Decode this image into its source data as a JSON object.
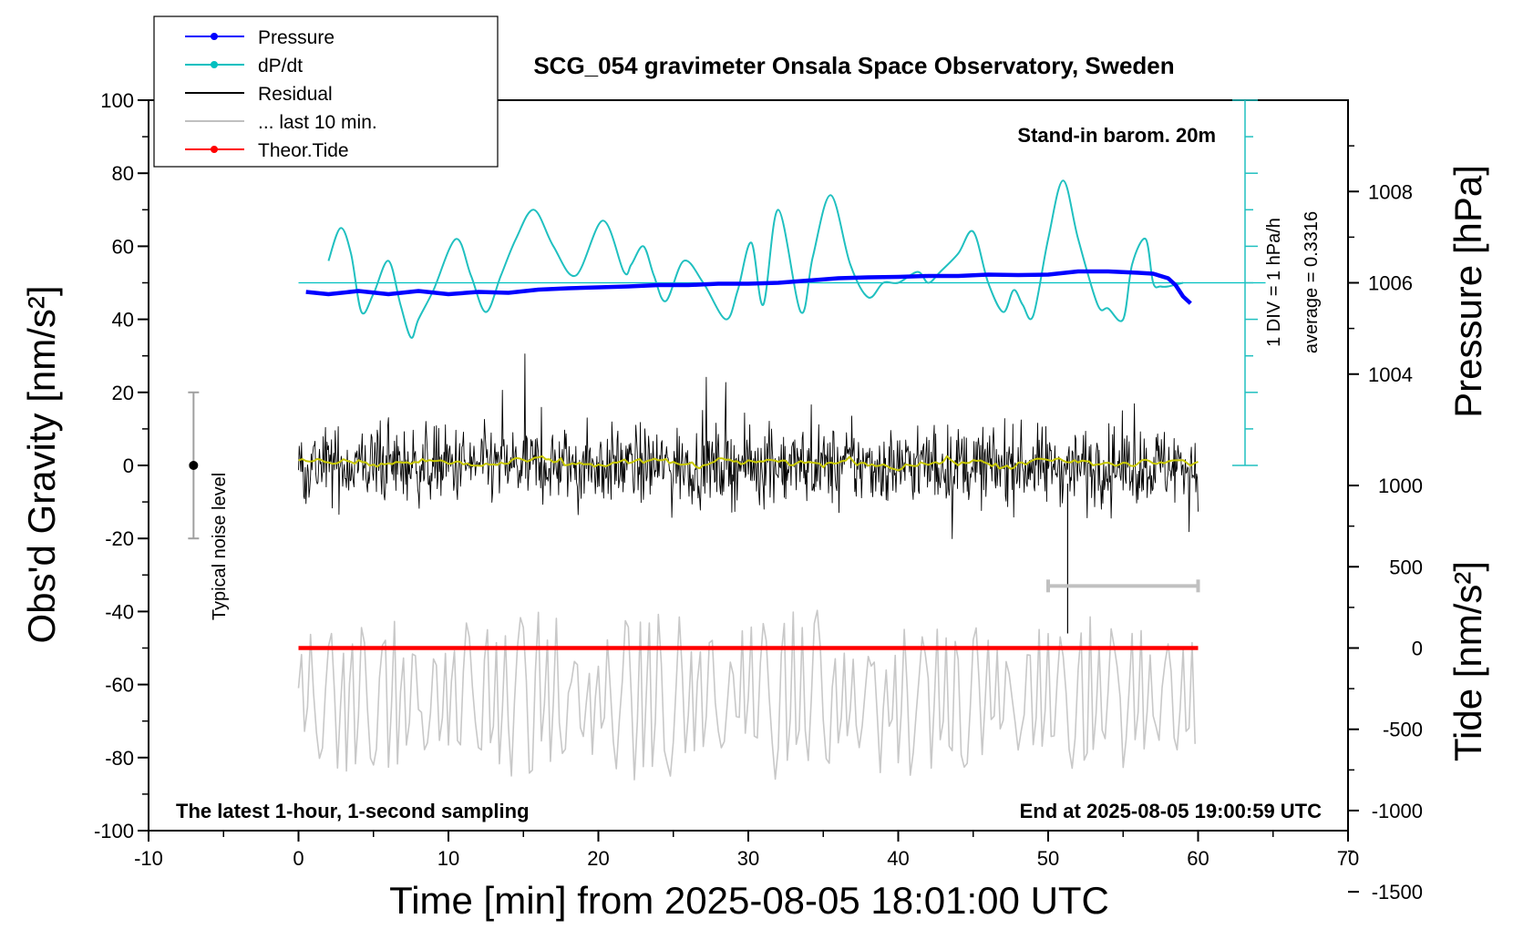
{
  "chart_data": {
    "type": "line",
    "title": "SCG_054 gravimeter Onsala Space Observatory, Sweden",
    "xlabel": "Time [min] from 2025-08-05 18:01:00 UTC",
    "ylabel_left": "Obs'd Gravity [nm/s²]",
    "ylabel_right_top": "Pressure [hPa]",
    "ylabel_right_bottom": "Tide [nm/s²]",
    "xlim": [
      -10,
      70
    ],
    "ylim": [
      -100,
      100
    ],
    "xticks": [
      "-10",
      "0",
      "10",
      "20",
      "30",
      "40",
      "50",
      "60",
      "70"
    ],
    "yticks": [
      "-100",
      "-80",
      "-60",
      "-40",
      "-20",
      "0",
      "20",
      "40",
      "60",
      "80",
      "100"
    ],
    "pressure_ticks": [
      "1004",
      "1006",
      "1008"
    ],
    "tide_ticks": [
      "-1500",
      "-1000",
      "-500",
      "0",
      "500",
      "1000"
    ],
    "annotations": {
      "barometer": "Stand-in barom. 20m",
      "latest": "The latest 1-hour, 1-second sampling",
      "end": "End at 2025-08-05 19:00:59 UTC",
      "noise": "Typical noise level",
      "scale": "1 DIV = 1 hPa/h",
      "average": "average = 0.3316"
    },
    "legend": [
      {
        "label": "Pressure",
        "color": "#0000ff",
        "marker": true
      },
      {
        "label": "dP/dt",
        "color": "#00c0c0",
        "marker": true
      },
      {
        "label": "Residual",
        "color": "#000000",
        "marker": false
      },
      {
        "label": "... last 10 min.",
        "color": "#c0c0c0",
        "marker": false
      },
      {
        "label": "Theor.Tide",
        "color": "#ff0000",
        "marker": true
      }
    ],
    "series": [
      {
        "name": "Pressure",
        "axis": "pressure_hPa",
        "x": [
          0.5,
          2,
          4,
          6,
          8,
          10,
          12,
          14,
          16,
          18,
          20,
          22,
          24,
          26,
          28,
          30,
          32,
          34,
          36,
          38,
          40,
          42,
          44,
          46,
          48,
          50,
          52,
          54,
          56,
          57,
          58,
          58.5,
          59,
          59.5
        ],
        "values": [
          1005.8,
          1005.75,
          1005.82,
          1005.75,
          1005.82,
          1005.75,
          1005.8,
          1005.78,
          1005.85,
          1005.88,
          1005.9,
          1005.92,
          1005.95,
          1005.95,
          1005.98,
          1005.98,
          1006.0,
          1006.05,
          1006.1,
          1006.12,
          1006.13,
          1006.15,
          1006.15,
          1006.18,
          1006.17,
          1006.18,
          1006.25,
          1006.25,
          1006.22,
          1006.2,
          1006.1,
          1005.95,
          1005.7,
          1005.55
        ]
      },
      {
        "name": "dP/dt",
        "axis": "gravity_equivalent",
        "x": [
          2,
          2.8,
          3.5,
          4.2,
          5,
          6,
          6.8,
          7.5,
          8,
          9,
          10.5,
          11.5,
          12.5,
          13.5,
          14.5,
          15.7,
          17,
          18.5,
          20.3,
          21.7,
          22.2,
          23,
          23.7,
          24.5,
          25.7,
          27,
          28.5,
          29.3,
          30.2,
          31,
          32,
          33.5,
          34.3,
          35.5,
          36.8,
          38,
          39,
          40,
          41.3,
          42,
          42.8,
          44,
          45,
          46,
          47,
          47.7,
          48.3,
          49,
          50,
          51,
          52,
          53.3,
          54,
          55,
          55.6,
          56.5,
          57,
          57.5,
          58,
          59
        ],
        "values": [
          56,
          65,
          58,
          42,
          47,
          56,
          44,
          35,
          40,
          48,
          62,
          52,
          42,
          52,
          62,
          70,
          60,
          52,
          67,
          53,
          55,
          60,
          52,
          45,
          56,
          50,
          40,
          48,
          61,
          44,
          70,
          42,
          57,
          74,
          55,
          46,
          50,
          50,
          53,
          50,
          53,
          58,
          64,
          50,
          42,
          48,
          44,
          41,
          62,
          78,
          62,
          44,
          43,
          40,
          55,
          62,
          50,
          49,
          49,
          50
        ]
      },
      {
        "name": "Residual",
        "axis": "gravity",
        "x_range": [
          0,
          60
        ],
        "amplitude_range": [
          -32,
          36
        ]
      },
      {
        "name": "Residual smoothed",
        "axis": "gravity",
        "x_range": [
          0,
          60
        ],
        "values_approx": [
          0,
          2
        ]
      },
      {
        "name": "... last 10 min.",
        "axis": "gravity",
        "x_range": [
          0,
          60
        ],
        "y_range": [
          -100,
          -28
        ]
      },
      {
        "name": "Theor.Tide",
        "axis": "tide",
        "x": [
          0,
          60
        ],
        "values": [
          0,
          0
        ]
      }
    ],
    "noise_level": {
      "x": -7,
      "center": 0,
      "range": [
        -20,
        20
      ]
    },
    "last10_bar": {
      "x": [
        50,
        60
      ],
      "y": -33
    },
    "dpdt_baseline": 50
  }
}
